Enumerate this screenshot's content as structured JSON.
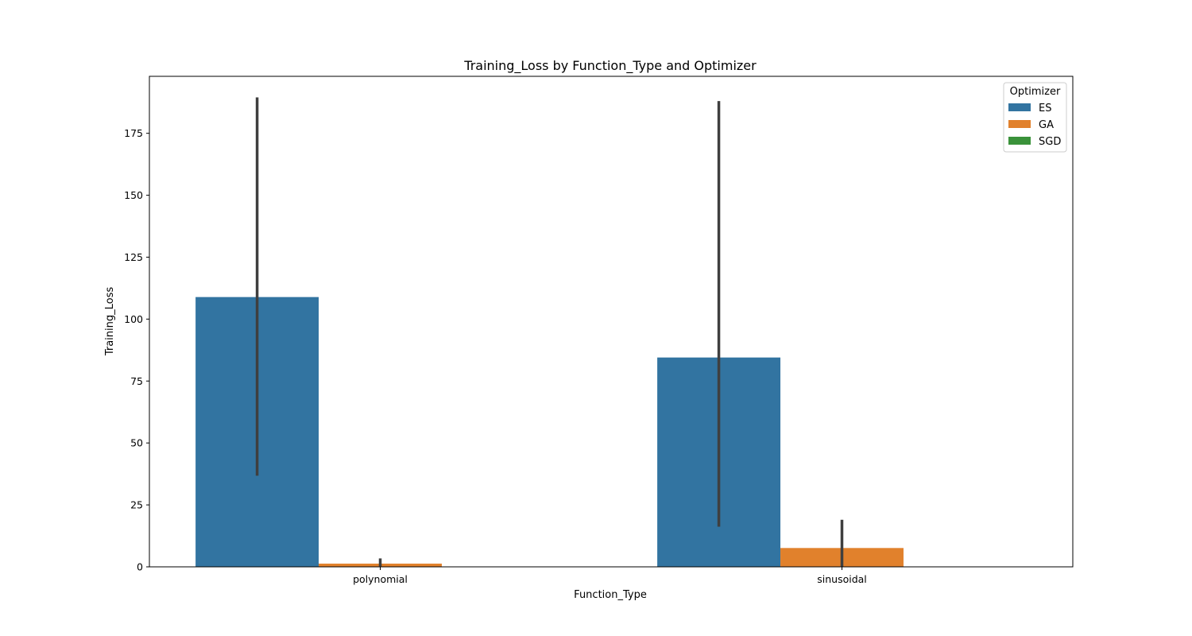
{
  "chart_data": {
    "type": "bar",
    "title": "Training_Loss by Function_Type and Optimizer",
    "xlabel": "Function_Type",
    "ylabel": "Training_Loss",
    "categories": [
      "polynomial",
      "sinusoidal"
    ],
    "ylim": [
      0,
      198
    ],
    "yticks": [
      0,
      25,
      50,
      75,
      100,
      125,
      150,
      175
    ],
    "grid": false,
    "legend": {
      "title": "Optimizer",
      "placement": "top-right"
    },
    "series": [
      {
        "name": "ES",
        "color": "#3274a1",
        "values": [
          108.9,
          84.5
        ],
        "error_low": [
          36.8,
          16.2
        ],
        "error_high": [
          189.5,
          188.0
        ]
      },
      {
        "name": "GA",
        "color": "#e1812c",
        "values": [
          1.3,
          7.6
        ],
        "error_low": [
          0.2,
          0.0
        ],
        "error_high": [
          3.4,
          19.0
        ]
      },
      {
        "name": "SGD",
        "color": "#3a923a",
        "values": [
          0.0,
          0.0
        ],
        "error_low": [
          0.0,
          0.0
        ],
        "error_high": [
          0.0,
          0.0
        ]
      }
    ]
  }
}
